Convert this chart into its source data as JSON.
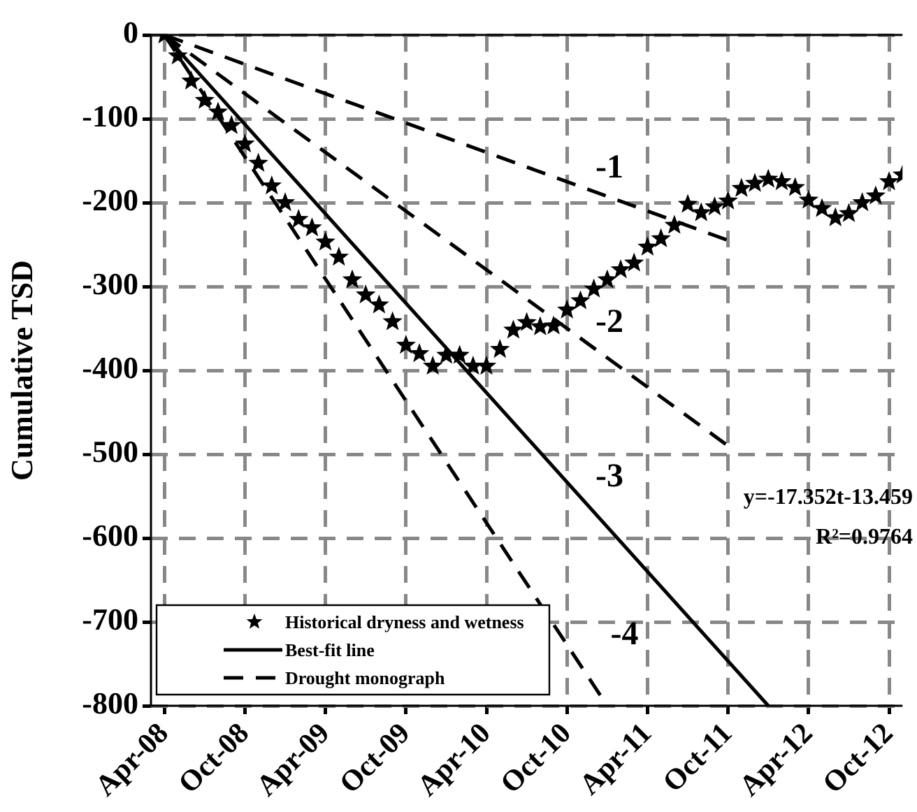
{
  "chart_data": {
    "type": "scatter",
    "ylabel": "Cumulative TSD",
    "xlim": [
      "2008-03",
      "2012-11"
    ],
    "ylim": [
      -800,
      0
    ],
    "xticks": [
      {
        "value": "2008-04",
        "label": "Apr-08"
      },
      {
        "value": "2008-10",
        "label": "Oct-08"
      },
      {
        "value": "2009-04",
        "label": "Apr-09"
      },
      {
        "value": "2009-10",
        "label": "Oct-09"
      },
      {
        "value": "2010-04",
        "label": "Apr-10"
      },
      {
        "value": "2010-10",
        "label": "Oct-10"
      },
      {
        "value": "2011-04",
        "label": "Apr-11"
      },
      {
        "value": "2011-10",
        "label": "Oct-11"
      },
      {
        "value": "2012-04",
        "label": "Apr-12"
      },
      {
        "value": "2012-10",
        "label": "Oct-12"
      }
    ],
    "yticks": [
      0,
      -100,
      -200,
      -300,
      -400,
      -500,
      -600,
      -700,
      -800
    ],
    "grid": true,
    "legend": "bottom left",
    "series": [
      {
        "name": "Historical dryness and wetness",
        "type": "scatter",
        "marker": "star",
        "color": "#000000",
        "x": [
          "2008-04",
          "2008-05",
          "2008-06",
          "2008-07",
          "2008-08",
          "2008-09",
          "2008-10",
          "2008-11",
          "2008-12",
          "2009-01",
          "2009-02",
          "2009-03",
          "2009-04",
          "2009-05",
          "2009-06",
          "2009-07",
          "2009-08",
          "2009-09",
          "2009-10",
          "2009-11",
          "2009-12",
          "2010-01",
          "2010-02",
          "2010-03",
          "2010-04",
          "2010-05",
          "2010-06",
          "2010-07",
          "2010-08",
          "2010-09",
          "2010-10",
          "2010-11",
          "2010-12",
          "2011-01",
          "2011-02",
          "2011-03",
          "2011-04",
          "2011-05",
          "2011-06",
          "2011-07",
          "2011-08",
          "2011-09",
          "2011-10",
          "2011-11",
          "2011-12",
          "2012-01",
          "2012-02",
          "2012-03",
          "2012-04",
          "2012-05",
          "2012-06",
          "2012-07",
          "2012-08",
          "2012-09",
          "2012-10",
          "2012-11"
        ],
        "values": [
          0,
          -25,
          -55,
          -78,
          -92,
          -108,
          -130,
          -153,
          -180,
          -200,
          -220,
          -230,
          -247,
          -265,
          -292,
          -310,
          -322,
          -342,
          -370,
          -380,
          -395,
          -382,
          -382,
          -395,
          -395,
          -375,
          -352,
          -343,
          -348,
          -347,
          -328,
          -317,
          -303,
          -292,
          -280,
          -272,
          -253,
          -243,
          -227,
          -202,
          -212,
          -205,
          -198,
          -183,
          -177,
          -172,
          -175,
          -182,
          -197,
          -207,
          -218,
          -213,
          -200,
          -192,
          -175,
          -167
        ]
      },
      {
        "name": "Best-fit line",
        "type": "line",
        "line_style": "solid",
        "marker": "none",
        "color": "#000000",
        "x": [
          "2008-04",
          "2012-01"
        ],
        "values": [
          0,
          -800
        ]
      },
      {
        "name": "Drought monograph",
        "type": "line",
        "line_style": "dashed",
        "marker": "none",
        "color": "#000000",
        "x": [
          "2008-04",
          "2011-10"
        ],
        "values": [
          0,
          -245
        ]
      },
      {
        "type": "line",
        "line_style": "dashed",
        "marker": "none",
        "color": "#000000",
        "x": [
          "2008-04",
          "2011-10"
        ],
        "values": [
          0,
          -490
        ]
      },
      {
        "type": "line",
        "line_style": "dashed",
        "marker": "none",
        "color": "#000000",
        "x": [
          "2008-04",
          "2011-01"
        ],
        "values": [
          0,
          -800
        ]
      }
    ],
    "annotations": [
      "-1",
      "-2",
      "-3",
      "-4",
      "y=-17.352t-13.459",
      "R²=0.9764"
    ]
  }
}
